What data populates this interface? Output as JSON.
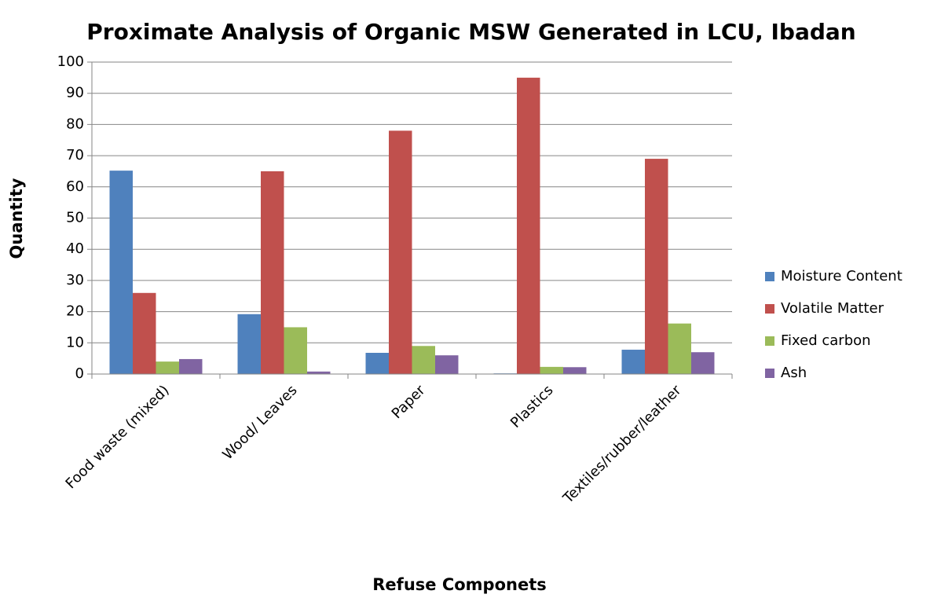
{
  "chart_data": {
    "type": "bar",
    "title": "Proximate Analysis of Organic MSW Generated in LCU, Ibadan",
    "x_label": "Refuse Componets",
    "y_label": "Quantity",
    "categories": [
      "Food waste (mixed)",
      "Wood/ Leaves",
      "Paper",
      "Plastics",
      "Textiles/rubber/leather"
    ],
    "series": [
      {
        "name": "Moisture Content",
        "color": "#4f81bd",
        "values": [
          65.2,
          19.2,
          6.8,
          0.2,
          7.8
        ]
      },
      {
        "name": "Volatile Matter",
        "color": "#c0504d",
        "values": [
          26,
          65,
          78,
          95,
          69
        ]
      },
      {
        "name": "Fixed carbon",
        "color": "#9bbb59",
        "values": [
          4,
          15,
          9,
          2.3,
          16.2
        ]
      },
      {
        "name": "Ash",
        "color": "#8064a2",
        "values": [
          4.8,
          0.8,
          6,
          2.2,
          7
        ]
      }
    ],
    "ylim": [
      0,
      100
    ],
    "yticks": [
      0,
      10,
      20,
      30,
      40,
      50,
      60,
      70,
      80,
      90,
      100
    ],
    "grid": true,
    "legend": "right"
  }
}
